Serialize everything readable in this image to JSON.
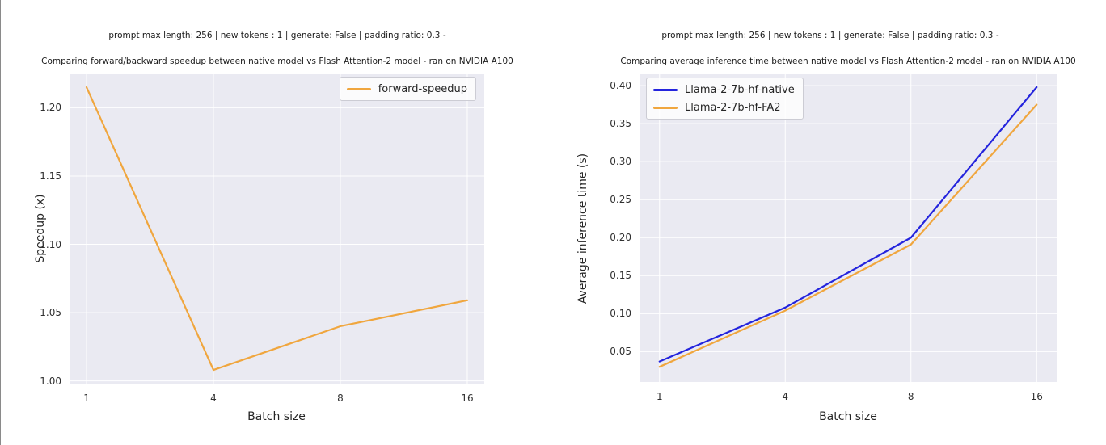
{
  "page": {
    "background_color": "#ffffff"
  },
  "chart_data": [
    {
      "type": "line",
      "suptitle": "prompt max length: 256 | new tokens : 1 | generate: False | padding ratio: 0.3 -",
      "title": "Comparing forward/backward speedup between native model vs Flash Attention-2 model - ran on NVIDIA A100",
      "xlabel": "Batch size",
      "ylabel": "Speedup (x)",
      "categories": [
        "1",
        "4",
        "8",
        "16"
      ],
      "x_values": [
        1,
        4,
        8,
        16
      ],
      "series": [
        {
          "name": "forward-speedup",
          "color": "#f0a63e",
          "values": [
            1.215,
            1.008,
            1.04,
            1.059
          ]
        }
      ],
      "yticks": [
        "1.00",
        "1.05",
        "1.10",
        "1.15",
        "1.20"
      ],
      "ylim": [
        0.998,
        1.2245
      ],
      "grid": true,
      "legend_position": "top-right",
      "background_color": "#eaeaf2",
      "grid_color": "#ffffff"
    },
    {
      "type": "line",
      "suptitle": "prompt max length: 256 | new tokens : 1 | generate: False | padding ratio: 0.3 -",
      "title": "Comparing average inference time between native model vs Flash Attention-2 model - ran on NVIDIA A100",
      "xlabel": "Batch size",
      "ylabel": "Average inference time (s)",
      "categories": [
        "1",
        "4",
        "8",
        "16"
      ],
      "x_values": [
        1,
        4,
        8,
        16
      ],
      "series": [
        {
          "name": "Llama-2-7b-hf-native",
          "color": "#2424dd",
          "values": [
            0.037,
            0.108,
            0.2,
            0.398
          ]
        },
        {
          "name": "Llama-2-7b-hf-FA2",
          "color": "#f0a63e",
          "values": [
            0.03,
            0.104,
            0.191,
            0.375
          ]
        }
      ],
      "yticks": [
        "0.05",
        "0.10",
        "0.15",
        "0.20",
        "0.25",
        "0.30",
        "0.35",
        "0.40"
      ],
      "ylim": [
        0.01,
        0.415
      ],
      "grid": true,
      "legend_position": "top-left",
      "background_color": "#eaeaf2",
      "grid_color": "#ffffff"
    }
  ]
}
